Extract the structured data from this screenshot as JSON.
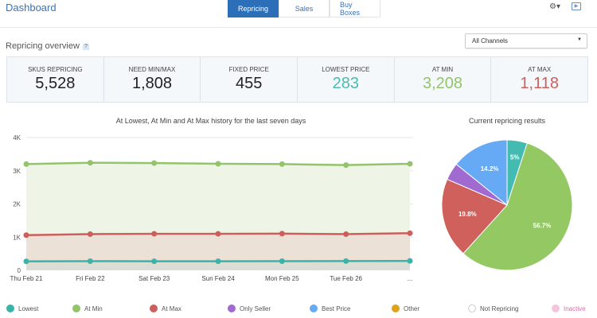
{
  "header": {
    "title": "Dashboard",
    "tabs": [
      {
        "label": "Repricing",
        "active": true
      },
      {
        "label": "Sales"
      },
      {
        "label": "Buy Boxes"
      }
    ],
    "gear_icon": "gear-icon",
    "screen_icon": "video-screen-icon"
  },
  "overview": {
    "title": "Repricing overview",
    "help": "?",
    "channel_select": "All Channels"
  },
  "stats": [
    {
      "label": "SKUS REPRICING",
      "value": "5,528",
      "color": "#222222"
    },
    {
      "label": "NEED MIN/MAX",
      "value": "1,808",
      "color": "#222222"
    },
    {
      "label": "FIXED PRICE",
      "value": "455",
      "color": "#222222"
    },
    {
      "label": "LOWEST PRICE",
      "value": "283",
      "color": "#4bbcb0"
    },
    {
      "label": "AT MIN",
      "value": "3,208",
      "color": "#93c46b"
    },
    {
      "label": "AT MAX",
      "value": "1,118",
      "color": "#cc5f5b"
    }
  ],
  "chart_data": [
    {
      "type": "line",
      "title": "At Lowest, At Min and At Max history for the last seven days",
      "categories": [
        "Thu Feb 21",
        "Fri Feb 22",
        "Sat Feb 23",
        "Sun Feb 24",
        "Mon Feb 25",
        "Tue Feb 26",
        "..."
      ],
      "yticks": [
        "0",
        "1K",
        "2K",
        "3K",
        "4K"
      ],
      "ylim": [
        0,
        4000
      ],
      "grid": true,
      "series": [
        {
          "name": "At Min",
          "color": "#93c46b",
          "fill": "#eef5e6",
          "values": [
            3200,
            3240,
            3230,
            3210,
            3200,
            3170,
            3208
          ]
        },
        {
          "name": "At Max",
          "color": "#cc5f5b",
          "fill": "#ebe1d6",
          "values": [
            1060,
            1090,
            1100,
            1100,
            1105,
            1090,
            1118
          ]
        },
        {
          "name": "Lowest",
          "color": "#3bb3a8",
          "fill": "#dcded5",
          "values": [
            270,
            275,
            272,
            272,
            275,
            278,
            283
          ]
        }
      ]
    },
    {
      "type": "pie",
      "title": "Current repricing results",
      "slices": [
        {
          "name": "Lowest",
          "value": 5,
          "label": "5%",
          "color": "#44bbb0"
        },
        {
          "name": "At Min",
          "value": 56.7,
          "label": "56.7%",
          "color": "#93c862"
        },
        {
          "name": "At Max",
          "value": 19.8,
          "label": "19.8%",
          "color": "#cf605c"
        },
        {
          "name": "Only Seller",
          "value": 4.3,
          "label": "",
          "color": "#a06ad1"
        },
        {
          "name": "Best Price",
          "value": 14.2,
          "label": "14.2%",
          "color": "#66aaf5"
        }
      ]
    }
  ],
  "legend": [
    {
      "label": "Lowest",
      "color": "#3bb3a8"
    },
    {
      "label": "At Min",
      "color": "#93c46b"
    },
    {
      "label": "At Max",
      "color": "#cc5f5b"
    },
    {
      "label": "Only Seller",
      "color": "#a06ad1"
    },
    {
      "label": "Best Price",
      "color": "#66aaf5"
    },
    {
      "label": "Other",
      "color": "#e0a11b"
    },
    {
      "label": "Not Repricing",
      "color": "#ffffff"
    },
    {
      "label": "Inactive",
      "color": "#f4c6dd"
    }
  ]
}
